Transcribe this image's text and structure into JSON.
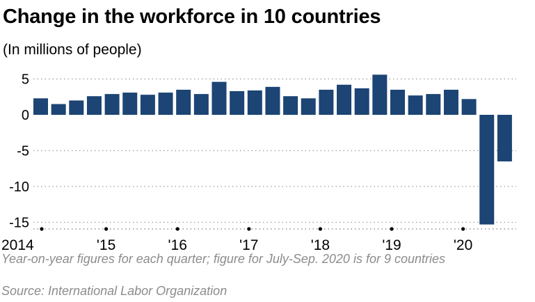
{
  "chart_data": {
    "type": "bar",
    "title": "Change in the workforce in 10 countries",
    "subtitle": "(In millions of people)",
    "xlabel": "",
    "ylabel": "",
    "ylim": [
      -16,
      6
    ],
    "yticks": [
      5,
      0,
      -5,
      -10,
      -15
    ],
    "ytick_labels": [
      "5",
      "0",
      "-5",
      "-10",
      "-15"
    ],
    "x_tick_labels": [
      "2014",
      "'15",
      "'16",
      "'17",
      "'18",
      "'19",
      "'20"
    ],
    "grid": true,
    "bar_color": "#1c4474",
    "categories": [
      "2014 Q1",
      "2014 Q2",
      "2014 Q3",
      "2014 Q4",
      "2015 Q1",
      "2015 Q2",
      "2015 Q3",
      "2015 Q4",
      "2016 Q1",
      "2016 Q2",
      "2016 Q3",
      "2016 Q4",
      "2017 Q1",
      "2017 Q2",
      "2017 Q3",
      "2017 Q4",
      "2018 Q1",
      "2018 Q2",
      "2018 Q3",
      "2018 Q4",
      "2019 Q1",
      "2019 Q2",
      "2019 Q3",
      "2019 Q4",
      "2020 Q1",
      "2020 Q2",
      "2020 Q3"
    ],
    "values": [
      2.3,
      1.5,
      2.0,
      2.6,
      2.9,
      3.1,
      2.8,
      3.1,
      3.5,
      2.9,
      4.6,
      3.3,
      3.4,
      3.9,
      2.6,
      2.3,
      3.5,
      4.2,
      3.7,
      5.6,
      3.5,
      2.7,
      2.9,
      3.5,
      2.2,
      -15.3,
      -6.5
    ],
    "note": "Year-on-year figures for each quarter; figure for July-Sep. 2020 is for 9 countries",
    "source": "Source: International Labor Organization"
  }
}
